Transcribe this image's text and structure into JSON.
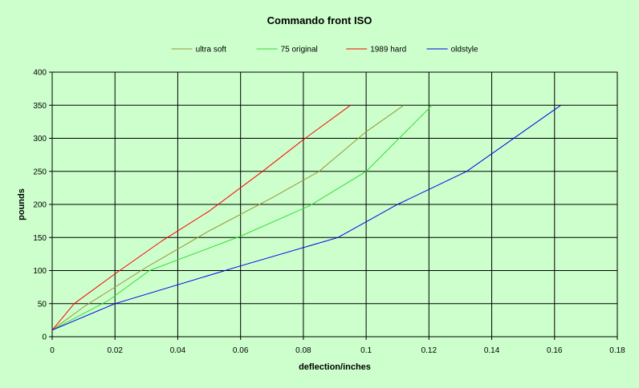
{
  "chart_data": {
    "type": "line",
    "title": "Commando front ISO",
    "xlabel": "deflection/inches",
    "ylabel": "pounds",
    "xlim": [
      0,
      0.18
    ],
    "ylim": [
      0,
      400
    ],
    "xticks": [
      "0",
      "0.02",
      "0.04",
      "0.06",
      "0.08",
      "0.1",
      "0.12",
      "0.14",
      "0.16",
      "0.18"
    ],
    "yticks": [
      "0",
      "50",
      "100",
      "150",
      "200",
      "250",
      "300",
      "350",
      "400"
    ],
    "grid": true,
    "legend": "top",
    "background": "#ccffcc",
    "series": [
      {
        "name": "ultra soft",
        "color": "#999933",
        "points": [
          [
            0,
            10
          ],
          [
            0.01,
            45
          ],
          [
            0.03,
            105
          ],
          [
            0.05,
            160
          ],
          [
            0.07,
            210
          ],
          [
            0.085,
            250
          ],
          [
            0.1,
            310
          ],
          [
            0.112,
            350
          ]
        ]
      },
      {
        "name": "75 original",
        "color": "#33dd33",
        "points": [
          [
            0,
            10
          ],
          [
            0.018,
            55
          ],
          [
            0.031,
            100
          ],
          [
            0.06,
            152
          ],
          [
            0.082,
            198
          ],
          [
            0.1,
            250
          ],
          [
            0.121,
            350
          ]
        ]
      },
      {
        "name": "1989 hard",
        "color": "#ff0000",
        "points": [
          [
            0,
            10
          ],
          [
            0.007,
            50
          ],
          [
            0.02,
            95
          ],
          [
            0.035,
            145
          ],
          [
            0.05,
            190
          ],
          [
            0.067,
            250
          ],
          [
            0.08,
            298
          ],
          [
            0.095,
            350
          ]
        ]
      },
      {
        "name": "oldstyle",
        "color": "#0000ee",
        "points": [
          [
            0,
            10
          ],
          [
            0.02,
            50
          ],
          [
            0.06,
            107
          ],
          [
            0.091,
            150
          ],
          [
            0.11,
            200
          ],
          [
            0.132,
            250
          ],
          [
            0.162,
            350
          ]
        ]
      }
    ]
  }
}
